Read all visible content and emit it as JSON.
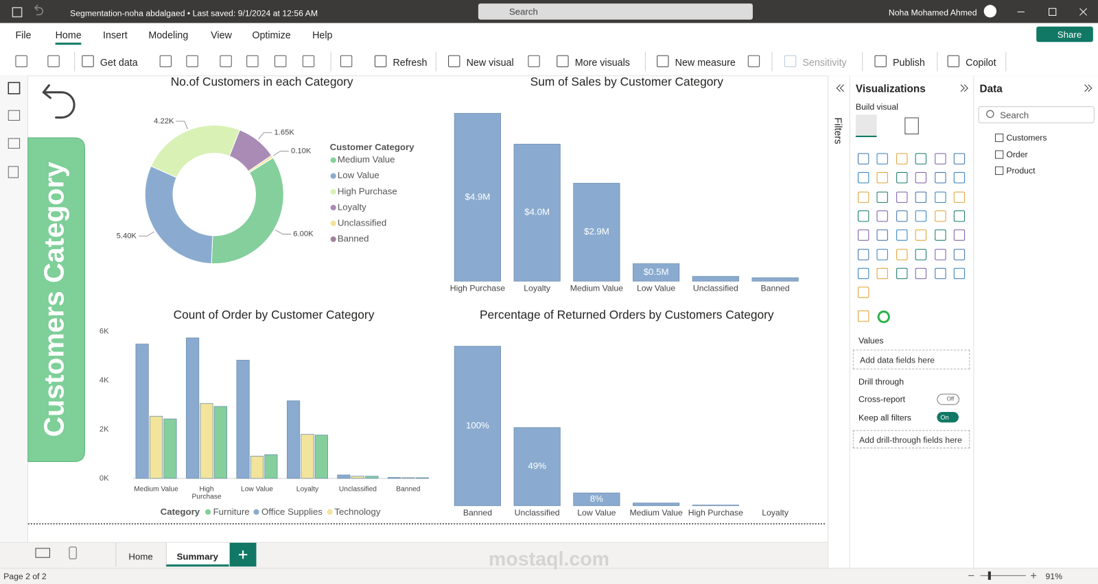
{
  "title_bar": {
    "document": "Segmentation-noha abdalgaed • Last saved: 9/1/2024 at 12:56 AM",
    "search": "Search",
    "user": "Noha Mohamed Ahmed"
  },
  "menu": {
    "tabs": [
      "File",
      "Home",
      "Insert",
      "Modeling",
      "View",
      "Optimize",
      "Help"
    ],
    "share": "Share"
  },
  "ribbon": [
    "Get data",
    "Refresh",
    "New visual",
    "More visuals",
    "New measure",
    "Sensitivity",
    "Publish",
    "Copilot"
  ],
  "banner": "Customers Category",
  "chart_data": [
    {
      "type": "donut",
      "title": "No.of Customers in each Category",
      "legend_title": "Customer Category",
      "legend": "right",
      "categories": [
        "Medium Value",
        "Low Value",
        "High Purchase",
        "Loyalty",
        "Unclassified",
        "Banned"
      ],
      "values": [
        6000,
        5400,
        4220,
        1650,
        100,
        10
      ],
      "value_labels": [
        "6.00K",
        "5.40K",
        "4.22K",
        "1.65K",
        "0.10K",
        null
      ],
      "colors": [
        "#84cf9c",
        "#8aabcf",
        "#d9f1b5",
        "#a98bb5",
        "#f2e49a",
        "#a0839a"
      ]
    },
    {
      "type": "bar",
      "title": "Sum of Sales by Customer Category",
      "categories": [
        "High Purchase",
        "Loyalty",
        "Medium Value",
        "Low Value",
        "Unclassified",
        "Banned"
      ],
      "values": [
        4900000,
        4000000,
        2860000,
        510000,
        140000,
        100000
      ],
      "value_labels": [
        "$4.9M",
        "$4.0M",
        "$2.9M",
        "$0.5M",
        null,
        null
      ],
      "color": "#8aabcf"
    },
    {
      "type": "bar",
      "title": "Count of Order by Customer Category",
      "legend_title": "Category",
      "legend": "bottom",
      "categories": [
        "Medium Value",
        "High Purchase",
        "Low Value",
        "Loyalty",
        "Unclassified",
        "Banned"
      ],
      "series": [
        {
          "name": "Furniture",
          "color": "#84cf9c",
          "values": [
            2430,
            2940,
            970,
            1770,
            90,
            30
          ]
        },
        {
          "name": "Office Supplies",
          "color": "#8aabcf",
          "values": [
            5490,
            5740,
            4830,
            3170,
            140,
            40
          ]
        },
        {
          "name": "Technology",
          "color": "#f2e49a",
          "values": [
            2540,
            3060,
            910,
            1800,
            90,
            30
          ]
        }
      ],
      "ylim": [
        0,
        6000
      ],
      "yticks": [
        {
          "value": 0,
          "label": "0K"
        },
        {
          "value": 2000,
          "label": "2K"
        },
        {
          "value": 4000,
          "label": "4K"
        },
        {
          "value": 6000,
          "label": "6K"
        }
      ],
      "grid": false
    },
    {
      "type": "bar",
      "title": "Percentage of Returned Orders by Customers Category",
      "categories": [
        "Banned",
        "Unclassified",
        "Low Value",
        "Medium Value",
        "High Purchase",
        "Loyalty"
      ],
      "values": [
        100,
        49,
        8,
        1.7,
        0.4,
        0
      ],
      "value_labels": [
        "100%",
        "49%",
        "8%",
        null,
        null,
        null
      ],
      "color": "#8aabcf"
    }
  ],
  "filters": "Filters",
  "visualizations": {
    "title": "Visualizations",
    "build": "Build visual",
    "values": "Values",
    "add_fields": "Add data fields here",
    "drill": "Drill through",
    "cross_report": "Cross-report",
    "off": "Off",
    "keep_filters": "Keep all filters",
    "on": "On",
    "add_drill": "Add drill-through fields here"
  },
  "data_pane": {
    "title": "Data",
    "search": "Search",
    "tables": [
      "Customers",
      "Order",
      "Product"
    ]
  },
  "pages": [
    "Home",
    "Summary"
  ],
  "status": {
    "page": "Page 2 of 2",
    "zoom": "91%"
  },
  "watermark": "mostaql.com"
}
